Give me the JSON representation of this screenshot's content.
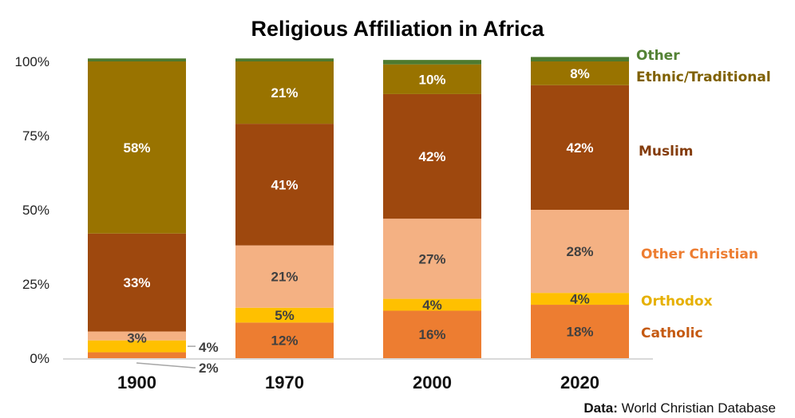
{
  "chart_data": {
    "type": "bar",
    "stacked": true,
    "title": "Religious Affiliation in Africa",
    "xlabel": "",
    "ylabel": "",
    "ylim": [
      0,
      100
    ],
    "yticks": [
      "0%",
      "25%",
      "50%",
      "75%",
      "100%"
    ],
    "ytick_values": [
      0,
      25,
      50,
      75,
      100
    ],
    "categories": [
      "1900",
      "1970",
      "2000",
      "2020"
    ],
    "grid": false,
    "legend_placement": "right",
    "series": [
      {
        "name": "Catholic",
        "color": "#ED7D31",
        "legend_color": "#C55A11",
        "label_color": "#404040",
        "values": [
          2,
          12,
          16,
          18
        ],
        "labels": [
          "2%",
          "12%",
          "16%",
          "18%"
        ]
      },
      {
        "name": "Orthodox",
        "color": "#FFC000",
        "legend_color": "#E6B000",
        "label_color": "#404040",
        "values": [
          4,
          5,
          4,
          4
        ],
        "labels": [
          "4%",
          "5%",
          "4%",
          "4%"
        ]
      },
      {
        "name": "Other Christian",
        "color": "#F4B183",
        "legend_color": "#ED7D31",
        "label_color": "#404040",
        "values": [
          3,
          21,
          27,
          28
        ],
        "labels": [
          "3%",
          "21%",
          "27%",
          "28%"
        ]
      },
      {
        "name": "Muslim",
        "color": "#9E480E",
        "legend_color": "#843C0C",
        "label_color": "#ffffff",
        "values": [
          33,
          41,
          42,
          42
        ],
        "labels": [
          "33%",
          "41%",
          "42%",
          "42%"
        ]
      },
      {
        "name": "Ethnic/Traditional",
        "color": "#997300",
        "legend_color": "#7F6000",
        "label_color": "#ffffff",
        "values": [
          58,
          21,
          10,
          8
        ],
        "labels": [
          "58%",
          "21%",
          "10%",
          "8%"
        ]
      },
      {
        "name": "Other",
        "color": "#4E7A2E",
        "legend_color": "#548235",
        "label_color": "#ffffff",
        "values": [
          1,
          1,
          1.5,
          1.5
        ],
        "labels": [
          "",
          "",
          "",
          ""
        ]
      }
    ]
  },
  "source": {
    "prefix": "Data:",
    "text": "World Christian Database"
  }
}
